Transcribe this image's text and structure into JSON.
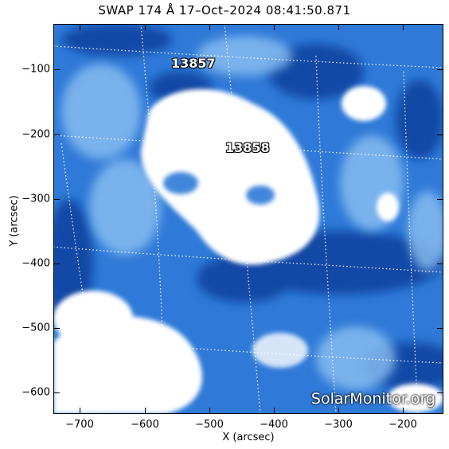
{
  "title": "SWAP 174 Å 17–Oct–2024 08:41:50.871",
  "active_regions": [
    {
      "label": "13857"
    },
    {
      "label": "13858"
    }
  ],
  "watermark": "SolarMonitor.org",
  "x_axis": {
    "label": "X (arcsec)",
    "ticks": [
      "−700",
      "−600",
      "−500",
      "−400",
      "−300",
      "−200"
    ],
    "range": [
      -737,
      -145
    ]
  },
  "y_axis": {
    "label": "Y (arcsec)",
    "ticks": [
      "−100",
      "−200",
      "−300",
      "−400",
      "−500",
      "−600"
    ],
    "range": [
      -632,
      -40
    ]
  },
  "colors": {
    "dark_blue": "#0a3f9e",
    "mid_blue": "#2f7ad8",
    "light_blue": "#8cc0f2",
    "white": "#ffffff"
  }
}
